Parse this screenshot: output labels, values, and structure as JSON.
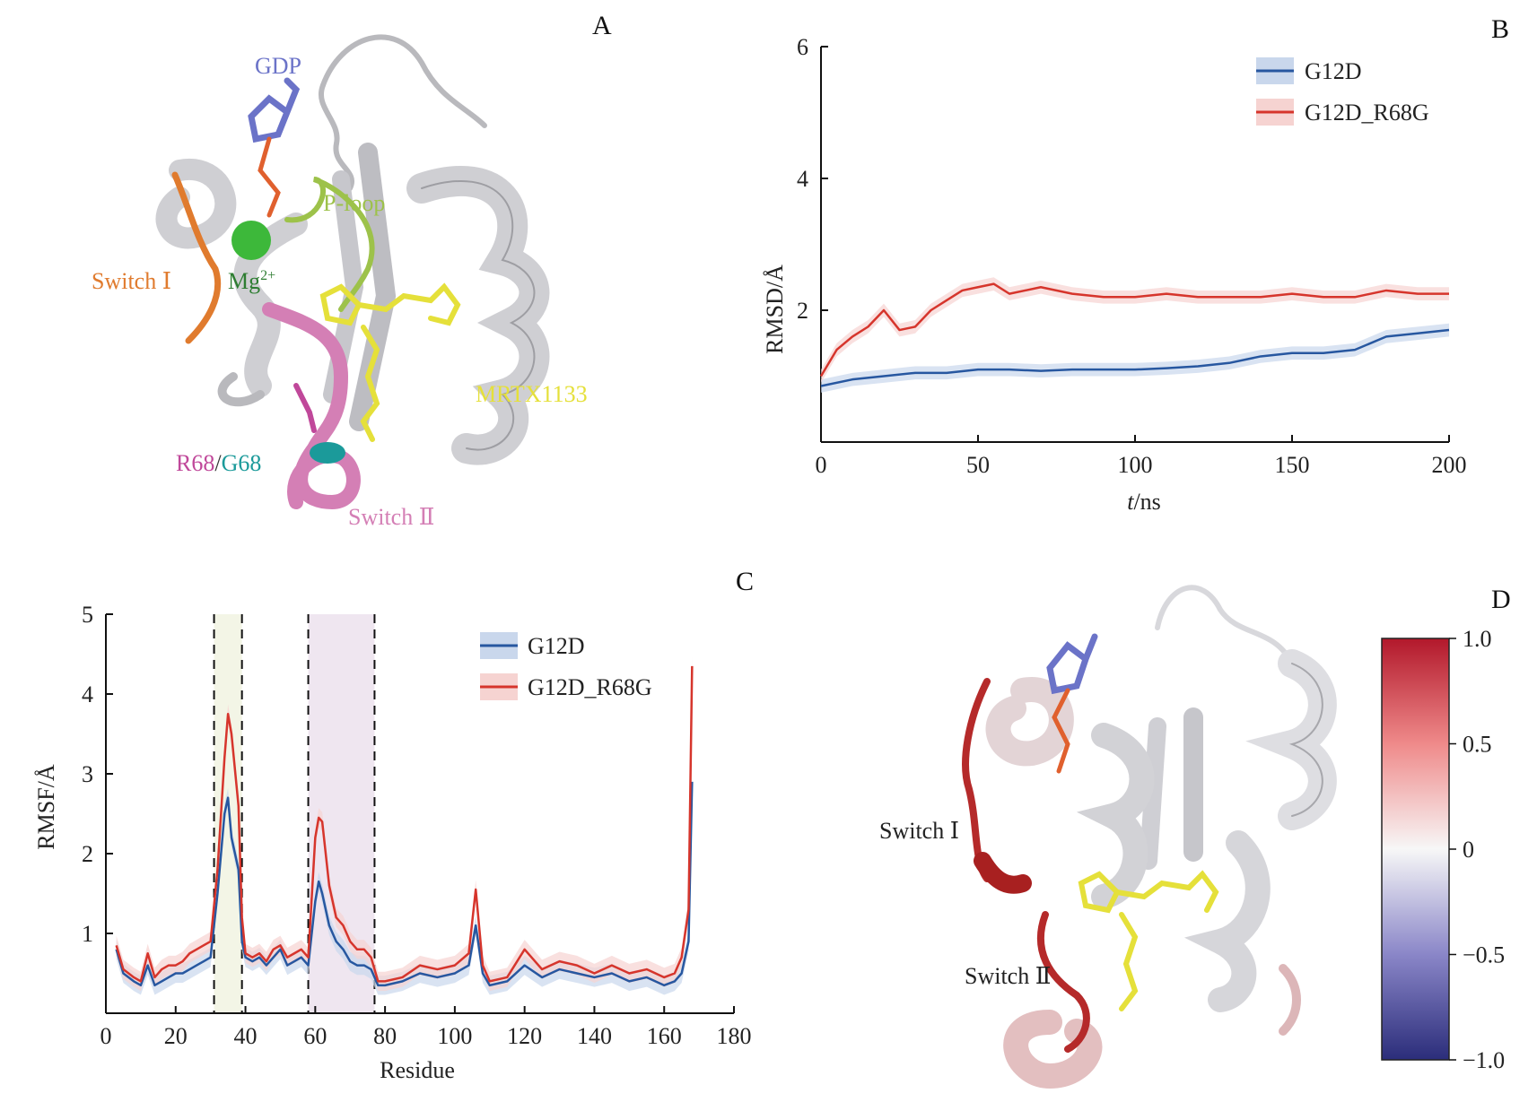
{
  "panels": {
    "a": "A",
    "b": "B",
    "c": "C",
    "d": "D"
  },
  "structure_a": {
    "labels": {
      "gdp": "GDP",
      "ploop": "P-loop",
      "switch1": "Switch Ⅰ",
      "mg": "Mg",
      "mg_sup": "2+",
      "mrtx": "MRTX1133",
      "r68": "R68",
      "slash": "/",
      "g68": "G68",
      "switch2": "Switch Ⅱ"
    },
    "colors": {
      "cartoon": "#cfcfd3",
      "gdp": "#6b73c8",
      "ploop": "#9dc24a",
      "switch1": "#e07b2e",
      "mg": "#3db83a",
      "mrtx": "#e5e03a",
      "r68": "#c0489a",
      "g68": "#1b9a9a",
      "switch2": "#d47fb5"
    }
  },
  "structure_d": {
    "labels": {
      "switch1": "Switch Ⅰ",
      "switch2": "Switch Ⅱ"
    },
    "colorbar": {
      "min": -1.0,
      "max": 1.0,
      "ticks": [
        "1.0",
        "0.5",
        "0",
        "−0.5",
        "−1.0"
      ]
    }
  },
  "chart_data": [
    {
      "type": "line",
      "ylabel_main": "RMSD",
      "ylabel_unit": "/Å",
      "xlabel_italic": "t",
      "xlabel_unit": "/ns",
      "xlim": [
        0,
        200
      ],
      "ylim": [
        0,
        6
      ],
      "xticks": [
        0,
        50,
        100,
        150,
        200
      ],
      "yticks": [
        2,
        4,
        6
      ],
      "legend_position": "top-right",
      "series": [
        {
          "name": "G12D",
          "color": "#2757a0",
          "band": "#c9d7ec",
          "x": [
            0,
            10,
            20,
            30,
            40,
            50,
            60,
            70,
            80,
            90,
            100,
            110,
            120,
            130,
            140,
            150,
            160,
            170,
            180,
            190,
            200
          ],
          "y": [
            0.85,
            0.95,
            1.0,
            1.05,
            1.05,
            1.1,
            1.1,
            1.08,
            1.1,
            1.1,
            1.1,
            1.12,
            1.15,
            1.2,
            1.3,
            1.35,
            1.35,
            1.4,
            1.6,
            1.65,
            1.7
          ]
        },
        {
          "name": "G12D_R68G",
          "color": "#d6352c",
          "band": "#f6d3d1",
          "x": [
            0,
            5,
            10,
            15,
            20,
            25,
            30,
            35,
            40,
            45,
            50,
            55,
            60,
            70,
            80,
            90,
            100,
            110,
            120,
            130,
            140,
            150,
            160,
            170,
            180,
            190,
            200
          ],
          "y": [
            1.0,
            1.4,
            1.6,
            1.75,
            2.0,
            1.7,
            1.75,
            2.0,
            2.15,
            2.3,
            2.35,
            2.4,
            2.25,
            2.35,
            2.25,
            2.2,
            2.2,
            2.25,
            2.2,
            2.2,
            2.2,
            2.25,
            2.2,
            2.2,
            2.3,
            2.25,
            2.25
          ]
        }
      ]
    },
    {
      "type": "line",
      "ylabel_main": "RMSF",
      "ylabel_unit": "/Å",
      "xlabel": "Residue",
      "xlim": [
        0,
        180
      ],
      "ylim": [
        0,
        5
      ],
      "xticks": [
        0,
        20,
        40,
        60,
        80,
        100,
        120,
        140,
        160,
        180
      ],
      "yticks": [
        1,
        2,
        3,
        4,
        5
      ],
      "legend_position": "top-right",
      "regions": [
        {
          "start": 31,
          "end": 39,
          "color": "#f3f5e6"
        },
        {
          "start": 58,
          "end": 77,
          "color": "#efe6f0"
        }
      ],
      "series": [
        {
          "name": "G12D",
          "color": "#2757a0",
          "band": "#c9d7ec",
          "x": [
            3,
            5,
            8,
            10,
            12,
            14,
            16,
            18,
            20,
            22,
            24,
            26,
            28,
            30,
            32,
            34,
            35,
            36,
            38,
            39,
            40,
            42,
            44,
            46,
            48,
            50,
            52,
            54,
            56,
            58,
            60,
            61,
            62,
            64,
            66,
            68,
            70,
            72,
            74,
            76,
            78,
            80,
            85,
            90,
            95,
            100,
            104,
            106,
            108,
            110,
            115,
            120,
            125,
            130,
            135,
            140,
            145,
            150,
            155,
            160,
            163,
            165,
            167,
            168
          ],
          "y": [
            0.8,
            0.5,
            0.4,
            0.35,
            0.6,
            0.35,
            0.4,
            0.45,
            0.5,
            0.5,
            0.55,
            0.6,
            0.65,
            0.7,
            1.5,
            2.5,
            2.7,
            2.2,
            1.8,
            0.9,
            0.7,
            0.65,
            0.7,
            0.6,
            0.7,
            0.8,
            0.6,
            0.65,
            0.7,
            0.6,
            1.4,
            1.65,
            1.5,
            1.1,
            0.9,
            0.8,
            0.65,
            0.6,
            0.6,
            0.55,
            0.35,
            0.35,
            0.4,
            0.5,
            0.45,
            0.5,
            0.6,
            1.1,
            0.5,
            0.35,
            0.4,
            0.6,
            0.45,
            0.55,
            0.5,
            0.45,
            0.5,
            0.4,
            0.45,
            0.35,
            0.4,
            0.5,
            0.9,
            2.9
          ]
        },
        {
          "name": "G12D_R68G",
          "color": "#d6352c",
          "band": "#f6d3d1",
          "x": [
            3,
            5,
            8,
            10,
            12,
            14,
            16,
            18,
            20,
            22,
            24,
            26,
            28,
            30,
            32,
            34,
            35,
            36,
            38,
            39,
            40,
            42,
            44,
            46,
            48,
            50,
            52,
            54,
            56,
            58,
            60,
            61,
            62,
            64,
            66,
            68,
            70,
            72,
            74,
            76,
            78,
            80,
            85,
            90,
            95,
            100,
            104,
            106,
            108,
            110,
            115,
            120,
            125,
            130,
            135,
            140,
            145,
            150,
            155,
            160,
            163,
            165,
            167,
            168
          ],
          "y": [
            0.85,
            0.55,
            0.45,
            0.4,
            0.75,
            0.45,
            0.55,
            0.6,
            0.6,
            0.65,
            0.75,
            0.8,
            0.85,
            0.9,
            1.8,
            3.2,
            3.75,
            3.5,
            2.6,
            1.2,
            0.75,
            0.7,
            0.75,
            0.65,
            0.8,
            0.85,
            0.7,
            0.75,
            0.8,
            0.7,
            2.2,
            2.45,
            2.4,
            1.6,
            1.2,
            1.1,
            0.9,
            0.8,
            0.8,
            0.7,
            0.4,
            0.4,
            0.45,
            0.6,
            0.55,
            0.6,
            0.75,
            1.55,
            0.6,
            0.4,
            0.45,
            0.8,
            0.55,
            0.65,
            0.6,
            0.5,
            0.6,
            0.5,
            0.55,
            0.45,
            0.5,
            0.7,
            1.3,
            4.35
          ]
        }
      ]
    }
  ]
}
